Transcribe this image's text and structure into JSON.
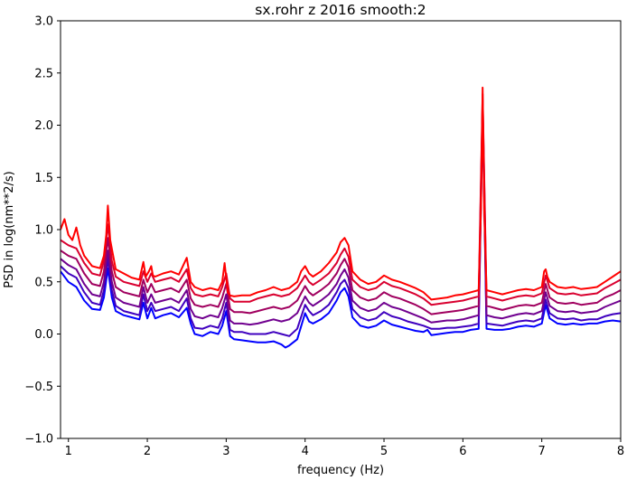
{
  "chart_data": {
    "type": "line",
    "title": "sx.rohr z 2016 smooth:2",
    "xlabel": "frequency (Hz)",
    "ylabel": "PSD in log(nm**2/s)",
    "xlim": [
      0.9,
      8.0
    ],
    "ylim": [
      -1.0,
      3.0
    ],
    "x_ticks": [
      1,
      2,
      3,
      4,
      5,
      6,
      7,
      8
    ],
    "y_ticks": [
      -1.0,
      -0.5,
      0.0,
      0.5,
      1.0,
      1.5,
      2.0,
      2.5,
      3.0
    ],
    "x_tick_labels": [
      "1",
      "2",
      "3",
      "4",
      "5",
      "6",
      "7",
      "8"
    ],
    "y_tick_labels": [
      "−1.0",
      "−0.5",
      "0.0",
      "0.5",
      "1.0",
      "1.5",
      "2.0",
      "2.5",
      "3.0"
    ],
    "grid": false,
    "legend": false,
    "series": [
      {
        "color": "#ff0000",
        "x": [
          0.9,
          0.95,
          1.0,
          1.05,
          1.1,
          1.15,
          1.2,
          1.3,
          1.4,
          1.45,
          1.48,
          1.5,
          1.53,
          1.6,
          1.7,
          1.8,
          1.9,
          1.95,
          1.98,
          2.02,
          2.05,
          2.07,
          2.1,
          2.2,
          2.3,
          2.4,
          2.45,
          2.5,
          2.55,
          2.6,
          2.7,
          2.8,
          2.9,
          2.95,
          2.98,
          3.02,
          3.05,
          3.1,
          3.2,
          3.3,
          3.4,
          3.5,
          3.6,
          3.7,
          3.8,
          3.9,
          3.95,
          4.0,
          4.05,
          4.1,
          4.2,
          4.3,
          4.4,
          4.45,
          4.5,
          4.55,
          4.6,
          4.7,
          4.8,
          4.9,
          5.0,
          5.1,
          5.2,
          5.3,
          5.4,
          5.5,
          5.6,
          5.7,
          5.8,
          5.9,
          6.0,
          6.1,
          6.2,
          6.23,
          6.25,
          6.27,
          6.3,
          6.4,
          6.5,
          6.6,
          6.7,
          6.8,
          6.9,
          7.0,
          7.03,
          7.05,
          7.07,
          7.1,
          7.2,
          7.3,
          7.4,
          7.5,
          7.6,
          7.7,
          7.8,
          7.9,
          8.0
        ],
        "values": [
          1.0,
          1.1,
          0.95,
          0.9,
          1.02,
          0.85,
          0.75,
          0.65,
          0.63,
          0.75,
          0.95,
          1.23,
          0.9,
          0.62,
          0.58,
          0.54,
          0.52,
          0.69,
          0.55,
          0.6,
          0.65,
          0.56,
          0.55,
          0.58,
          0.6,
          0.57,
          0.65,
          0.73,
          0.5,
          0.45,
          0.42,
          0.44,
          0.42,
          0.5,
          0.68,
          0.4,
          0.37,
          0.36,
          0.37,
          0.37,
          0.4,
          0.42,
          0.45,
          0.42,
          0.44,
          0.5,
          0.6,
          0.65,
          0.58,
          0.55,
          0.6,
          0.68,
          0.78,
          0.88,
          0.92,
          0.85,
          0.6,
          0.52,
          0.48,
          0.5,
          0.56,
          0.52,
          0.5,
          0.47,
          0.44,
          0.4,
          0.33,
          0.34,
          0.35,
          0.37,
          0.38,
          0.4,
          0.42,
          1.2,
          2.36,
          1.2,
          0.42,
          0.4,
          0.38,
          0.4,
          0.42,
          0.43,
          0.42,
          0.45,
          0.6,
          0.62,
          0.55,
          0.5,
          0.45,
          0.44,
          0.45,
          0.43,
          0.44,
          0.45,
          0.5,
          0.55,
          0.6
        ]
      },
      {
        "color": "#d9002f",
        "x": [
          0.9,
          1.0,
          1.1,
          1.2,
          1.3,
          1.4,
          1.45,
          1.5,
          1.55,
          1.6,
          1.7,
          1.8,
          1.9,
          1.95,
          2.0,
          2.05,
          2.1,
          2.2,
          2.3,
          2.4,
          2.5,
          2.55,
          2.6,
          2.7,
          2.8,
          2.9,
          2.95,
          3.0,
          3.05,
          3.1,
          3.2,
          3.3,
          3.4,
          3.5,
          3.6,
          3.7,
          3.8,
          3.9,
          4.0,
          4.05,
          4.1,
          4.2,
          4.3,
          4.4,
          4.45,
          4.5,
          4.55,
          4.6,
          4.7,
          4.8,
          4.9,
          5.0,
          5.1,
          5.2,
          5.3,
          5.4,
          5.5,
          5.6,
          5.7,
          5.8,
          5.9,
          6.0,
          6.1,
          6.2,
          6.25,
          6.3,
          6.4,
          6.5,
          6.6,
          6.7,
          6.8,
          6.9,
          7.0,
          7.05,
          7.1,
          7.2,
          7.3,
          7.4,
          7.5,
          7.6,
          7.7,
          7.8,
          7.9,
          8.0
        ],
        "values": [
          0.9,
          0.85,
          0.82,
          0.68,
          0.58,
          0.56,
          0.7,
          1.05,
          0.7,
          0.55,
          0.5,
          0.48,
          0.46,
          0.6,
          0.5,
          0.58,
          0.5,
          0.52,
          0.54,
          0.5,
          0.62,
          0.44,
          0.38,
          0.36,
          0.38,
          0.36,
          0.45,
          0.58,
          0.34,
          0.31,
          0.31,
          0.31,
          0.34,
          0.36,
          0.38,
          0.36,
          0.38,
          0.44,
          0.56,
          0.5,
          0.47,
          0.52,
          0.58,
          0.68,
          0.76,
          0.82,
          0.74,
          0.52,
          0.45,
          0.42,
          0.44,
          0.5,
          0.46,
          0.44,
          0.41,
          0.38,
          0.34,
          0.28,
          0.29,
          0.3,
          0.31,
          0.32,
          0.34,
          0.36,
          2.3,
          0.36,
          0.34,
          0.32,
          0.34,
          0.36,
          0.37,
          0.36,
          0.39,
          0.56,
          0.44,
          0.39,
          0.38,
          0.39,
          0.37,
          0.38,
          0.39,
          0.44,
          0.48,
          0.52
        ]
      },
      {
        "color": "#a0005f",
        "x": [
          0.9,
          1.0,
          1.1,
          1.2,
          1.3,
          1.4,
          1.45,
          1.5,
          1.55,
          1.6,
          1.7,
          1.8,
          1.9,
          1.95,
          2.0,
          2.05,
          2.1,
          2.2,
          2.3,
          2.4,
          2.5,
          2.55,
          2.6,
          2.7,
          2.8,
          2.9,
          2.95,
          3.0,
          3.05,
          3.1,
          3.2,
          3.3,
          3.4,
          3.5,
          3.6,
          3.7,
          3.8,
          3.9,
          4.0,
          4.05,
          4.1,
          4.2,
          4.3,
          4.4,
          4.45,
          4.5,
          4.55,
          4.6,
          4.7,
          4.8,
          4.9,
          5.0,
          5.1,
          5.2,
          5.3,
          5.4,
          5.5,
          5.6,
          5.7,
          5.8,
          5.9,
          6.0,
          6.1,
          6.2,
          6.25,
          6.3,
          6.4,
          6.5,
          6.6,
          6.7,
          6.8,
          6.9,
          7.0,
          7.05,
          7.1,
          7.2,
          7.3,
          7.4,
          7.5,
          7.6,
          7.7,
          7.8,
          7.9,
          8.0
        ],
        "values": [
          0.8,
          0.75,
          0.72,
          0.58,
          0.48,
          0.46,
          0.6,
          0.92,
          0.6,
          0.45,
          0.4,
          0.38,
          0.36,
          0.52,
          0.4,
          0.48,
          0.4,
          0.42,
          0.44,
          0.4,
          0.52,
          0.34,
          0.28,
          0.26,
          0.28,
          0.26,
          0.35,
          0.48,
          0.24,
          0.21,
          0.21,
          0.2,
          0.22,
          0.24,
          0.26,
          0.24,
          0.26,
          0.32,
          0.46,
          0.4,
          0.37,
          0.42,
          0.48,
          0.58,
          0.66,
          0.72,
          0.64,
          0.42,
          0.35,
          0.32,
          0.34,
          0.4,
          0.36,
          0.34,
          0.31,
          0.28,
          0.24,
          0.19,
          0.2,
          0.21,
          0.22,
          0.23,
          0.25,
          0.27,
          2.25,
          0.27,
          0.25,
          0.23,
          0.25,
          0.27,
          0.28,
          0.27,
          0.3,
          0.48,
          0.35,
          0.3,
          0.29,
          0.3,
          0.28,
          0.29,
          0.3,
          0.35,
          0.38,
          0.42
        ]
      },
      {
        "color": "#70008f",
        "x": [
          0.9,
          1.0,
          1.1,
          1.2,
          1.3,
          1.4,
          1.45,
          1.5,
          1.55,
          1.6,
          1.7,
          1.8,
          1.9,
          1.95,
          2.0,
          2.05,
          2.1,
          2.2,
          2.3,
          2.4,
          2.5,
          2.55,
          2.6,
          2.7,
          2.8,
          2.9,
          2.95,
          3.0,
          3.05,
          3.1,
          3.2,
          3.3,
          3.4,
          3.5,
          3.6,
          3.7,
          3.8,
          3.9,
          4.0,
          4.05,
          4.1,
          4.2,
          4.3,
          4.4,
          4.45,
          4.5,
          4.55,
          4.6,
          4.7,
          4.8,
          4.9,
          5.0,
          5.1,
          5.2,
          5.3,
          5.4,
          5.5,
          5.6,
          5.7,
          5.8,
          5.9,
          6.0,
          6.1,
          6.2,
          6.25,
          6.3,
          6.4,
          6.5,
          6.6,
          6.7,
          6.8,
          6.9,
          7.0,
          7.05,
          7.1,
          7.2,
          7.3,
          7.4,
          7.5,
          7.6,
          7.7,
          7.8,
          7.9,
          8.0
        ],
        "values": [
          0.72,
          0.66,
          0.62,
          0.48,
          0.38,
          0.36,
          0.5,
          0.8,
          0.5,
          0.35,
          0.3,
          0.28,
          0.26,
          0.45,
          0.3,
          0.38,
          0.3,
          0.32,
          0.34,
          0.3,
          0.42,
          0.24,
          0.17,
          0.15,
          0.18,
          0.16,
          0.25,
          0.38,
          0.13,
          0.1,
          0.1,
          0.09,
          0.1,
          0.12,
          0.14,
          0.12,
          0.14,
          0.2,
          0.36,
          0.3,
          0.27,
          0.32,
          0.38,
          0.48,
          0.56,
          0.62,
          0.54,
          0.32,
          0.25,
          0.22,
          0.24,
          0.3,
          0.26,
          0.24,
          0.21,
          0.18,
          0.15,
          0.11,
          0.12,
          0.13,
          0.13,
          0.14,
          0.16,
          0.18,
          2.2,
          0.18,
          0.16,
          0.15,
          0.17,
          0.19,
          0.2,
          0.19,
          0.22,
          0.4,
          0.27,
          0.22,
          0.21,
          0.22,
          0.2,
          0.21,
          0.22,
          0.26,
          0.29,
          0.32
        ]
      },
      {
        "color": "#3f00bf",
        "x": [
          0.9,
          1.0,
          1.1,
          1.2,
          1.3,
          1.4,
          1.45,
          1.5,
          1.55,
          1.6,
          1.7,
          1.8,
          1.9,
          1.95,
          2.0,
          2.05,
          2.1,
          2.2,
          2.3,
          2.4,
          2.5,
          2.55,
          2.6,
          2.7,
          2.8,
          2.9,
          2.95,
          3.0,
          3.05,
          3.1,
          3.2,
          3.3,
          3.4,
          3.5,
          3.6,
          3.7,
          3.8,
          3.9,
          4.0,
          4.05,
          4.1,
          4.2,
          4.3,
          4.4,
          4.45,
          4.5,
          4.55,
          4.6,
          4.7,
          4.8,
          4.9,
          5.0,
          5.1,
          5.2,
          5.3,
          5.4,
          5.5,
          5.6,
          5.7,
          5.8,
          5.9,
          6.0,
          6.1,
          6.2,
          6.25,
          6.3,
          6.4,
          6.5,
          6.6,
          6.7,
          6.8,
          6.9,
          7.0,
          7.05,
          7.1,
          7.2,
          7.3,
          7.4,
          7.5,
          7.6,
          7.7,
          7.8,
          7.9,
          8.0
        ],
        "values": [
          0.65,
          0.58,
          0.54,
          0.4,
          0.3,
          0.28,
          0.42,
          0.72,
          0.42,
          0.27,
          0.22,
          0.2,
          0.18,
          0.38,
          0.22,
          0.3,
          0.22,
          0.24,
          0.26,
          0.22,
          0.34,
          0.15,
          0.06,
          0.05,
          0.08,
          0.06,
          0.15,
          0.3,
          0.04,
          0.02,
          0.02,
          0.0,
          0.0,
          0.0,
          0.02,
          0.0,
          -0.02,
          0.05,
          0.28,
          0.22,
          0.18,
          0.22,
          0.28,
          0.4,
          0.48,
          0.52,
          0.44,
          0.24,
          0.16,
          0.13,
          0.15,
          0.21,
          0.17,
          0.15,
          0.12,
          0.1,
          0.08,
          0.05,
          0.05,
          0.06,
          0.06,
          0.07,
          0.08,
          0.1,
          2.15,
          0.1,
          0.09,
          0.08,
          0.1,
          0.12,
          0.13,
          0.12,
          0.15,
          0.33,
          0.2,
          0.15,
          0.14,
          0.15,
          0.13,
          0.14,
          0.14,
          0.17,
          0.19,
          0.2
        ]
      },
      {
        "color": "#0000ff",
        "x": [
          0.9,
          1.0,
          1.1,
          1.2,
          1.3,
          1.4,
          1.45,
          1.5,
          1.55,
          1.6,
          1.7,
          1.8,
          1.9,
          1.95,
          2.0,
          2.05,
          2.1,
          2.2,
          2.3,
          2.4,
          2.5,
          2.55,
          2.6,
          2.7,
          2.8,
          2.9,
          2.95,
          3.0,
          3.05,
          3.1,
          3.2,
          3.3,
          3.4,
          3.5,
          3.6,
          3.7,
          3.75,
          3.8,
          3.9,
          4.0,
          4.05,
          4.1,
          4.2,
          4.3,
          4.4,
          4.45,
          4.5,
          4.55,
          4.6,
          4.7,
          4.8,
          4.9,
          5.0,
          5.1,
          5.2,
          5.3,
          5.4,
          5.5,
          5.55,
          5.6,
          5.7,
          5.8,
          5.9,
          6.0,
          6.1,
          6.2,
          6.25,
          6.3,
          6.4,
          6.5,
          6.6,
          6.7,
          6.8,
          6.9,
          7.0,
          7.05,
          7.1,
          7.2,
          7.3,
          7.4,
          7.5,
          7.6,
          7.7,
          7.8,
          7.9,
          8.0
        ],
        "values": [
          0.6,
          0.5,
          0.45,
          0.32,
          0.24,
          0.23,
          0.35,
          0.63,
          0.35,
          0.22,
          0.18,
          0.16,
          0.14,
          0.3,
          0.15,
          0.25,
          0.15,
          0.18,
          0.2,
          0.16,
          0.25,
          0.1,
          0.0,
          -0.02,
          0.02,
          0.0,
          0.08,
          0.22,
          -0.02,
          -0.05,
          -0.06,
          -0.07,
          -0.08,
          -0.08,
          -0.07,
          -0.1,
          -0.13,
          -0.11,
          -0.05,
          0.2,
          0.12,
          0.1,
          0.14,
          0.2,
          0.32,
          0.4,
          0.44,
          0.36,
          0.16,
          0.08,
          0.06,
          0.08,
          0.13,
          0.09,
          0.07,
          0.05,
          0.03,
          0.02,
          0.04,
          -0.01,
          0.0,
          0.01,
          0.02,
          0.02,
          0.04,
          0.05,
          2.1,
          0.05,
          0.04,
          0.04,
          0.05,
          0.07,
          0.08,
          0.07,
          0.1,
          0.28,
          0.15,
          0.1,
          0.09,
          0.1,
          0.09,
          0.1,
          0.1,
          0.12,
          0.13,
          0.12
        ]
      }
    ]
  }
}
